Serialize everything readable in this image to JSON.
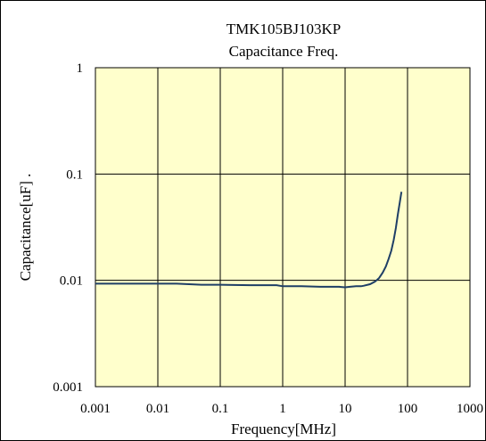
{
  "chart_data": {
    "type": "line",
    "title": "TMK105BJ103KP",
    "subtitle": "Capacitance Freq.",
    "xlabel": "Frequency[MHz]",
    "ylabel": "Capacitance[uF] .",
    "xscale": "log",
    "yscale": "log",
    "xlim": [
      0.001,
      1000
    ],
    "ylim": [
      0.001,
      1
    ],
    "x_ticks": [
      "0.001",
      "0.01",
      "0.1",
      "1",
      "10",
      "100",
      "1000"
    ],
    "y_ticks": [
      "0.001",
      "0.01",
      "0.1",
      "1"
    ],
    "grid": true,
    "plot_background": "#ffffcc",
    "line_color": "#1f3f66",
    "series": [
      {
        "x": [
          0.001,
          0.005,
          0.02,
          0.05,
          0.1,
          0.3,
          0.8,
          1.0,
          2.0,
          4.0,
          8.0,
          10.0,
          12.0,
          15.0,
          18.0,
          20.0,
          25.0,
          30.0,
          35.0,
          40.0,
          45.0,
          50.0,
          55.0,
          60.0,
          65.0,
          70.0,
          75.0,
          80.0
        ],
        "y": [
          0.0093,
          0.0093,
          0.0093,
          0.0091,
          0.0091,
          0.009,
          0.009,
          0.0088,
          0.0088,
          0.0087,
          0.0087,
          0.0086,
          0.0087,
          0.0088,
          0.0088,
          0.0089,
          0.0092,
          0.0097,
          0.0105,
          0.0118,
          0.0135,
          0.016,
          0.019,
          0.024,
          0.031,
          0.042,
          0.054,
          0.068
        ]
      }
    ]
  }
}
